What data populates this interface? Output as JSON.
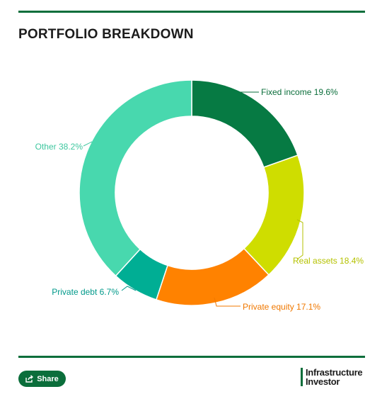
{
  "header": {
    "title": "PORTFOLIO BREAKDOWN"
  },
  "chart_data": {
    "type": "pie",
    "donut": true,
    "title": "PORTFOLIO BREAKDOWN",
    "unit": "%",
    "slices": [
      {
        "label": "Fixed income",
        "value": 19.6,
        "color": "#067a43",
        "label_color": "#0b6e3b",
        "label_side": "right"
      },
      {
        "label": "Real assets",
        "value": 18.4,
        "color": "#cfdd00",
        "label_color": "#b5c200",
        "label_side": "right"
      },
      {
        "label": "Private equity",
        "value": 17.1,
        "color": "#ff8200",
        "label_color": "#f07800",
        "label_side": "right"
      },
      {
        "label": "Private debt",
        "value": 6.7,
        "color": "#00ae94",
        "label_color": "#00998a",
        "label_side": "left"
      },
      {
        "label": "Other",
        "value": 38.2,
        "color": "#48d8ae",
        "label_color": "#3ec79f",
        "label_side": "left"
      }
    ]
  },
  "footer": {
    "share_label": "Share",
    "brand_line1": "Infrastructure",
    "brand_line2": "Investor",
    "accent_color": "#0b6e3b"
  }
}
